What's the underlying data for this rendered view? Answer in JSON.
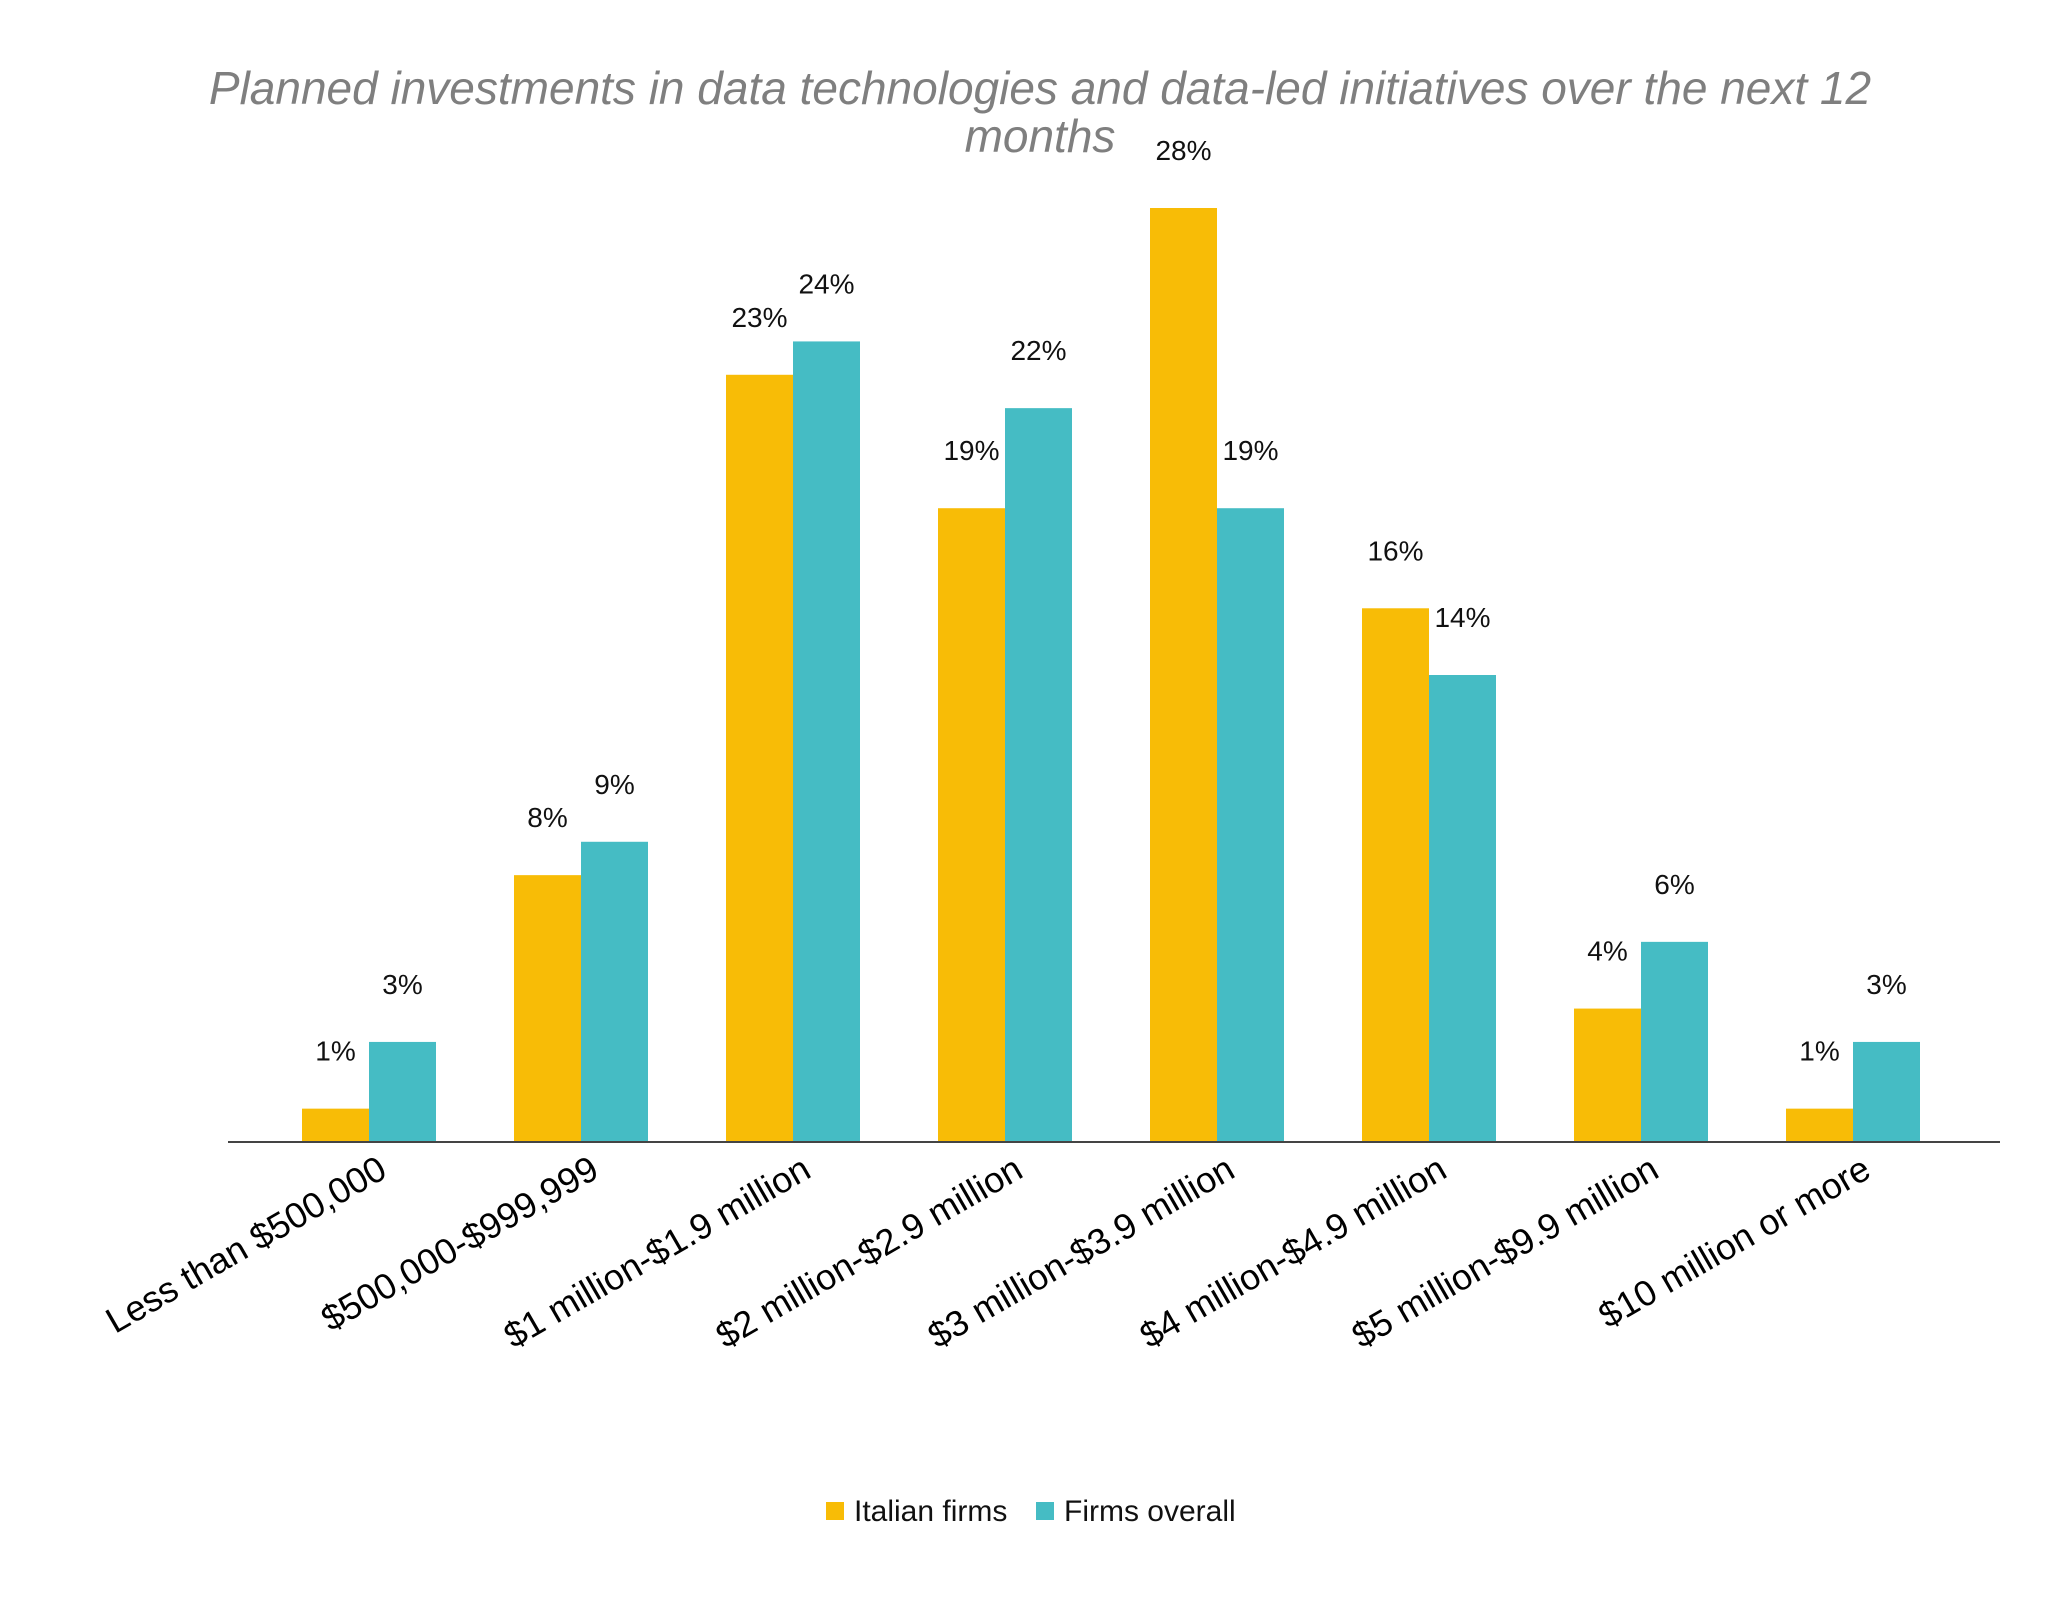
{
  "chart_data": {
    "type": "bar",
    "title": "Planned investments in data technologies and data-led initiatives over the next 12 months",
    "categories": [
      "Less than $500,000",
      "$500,000-$999,999",
      "$1 million-$1.9 million",
      "$2 million-$2.9 million",
      "$3 million-$3.9 million",
      "$4 million-$4.9 million",
      "$5 million-$9.9 million",
      "$10 million or more"
    ],
    "series": [
      {
        "name": "Italian firms",
        "color": "#F8BC06",
        "values": [
          1,
          8,
          23,
          19,
          28,
          16,
          4,
          1
        ]
      },
      {
        "name": "Firms overall",
        "color": "#45BCC4",
        "values": [
          3,
          9,
          24,
          22,
          19,
          14,
          6,
          3
        ]
      }
    ],
    "value_suffix": "%",
    "ylim": [
      0,
      28
    ],
    "grid": false,
    "legend_position": "bottom-center"
  }
}
